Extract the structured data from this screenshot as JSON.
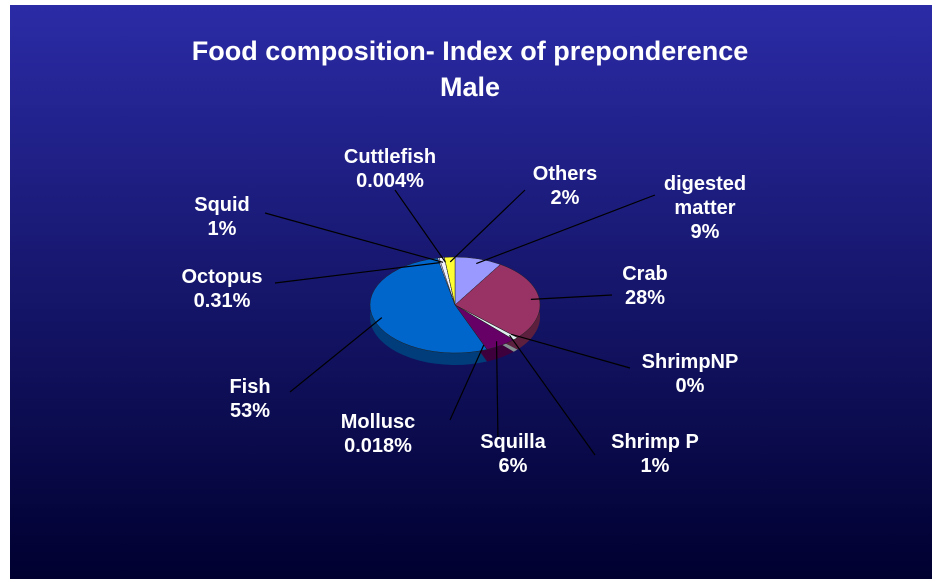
{
  "chart_data": {
    "type": "pie",
    "title": "Food composition- Index of preponderence",
    "subtitle": "Male",
    "categories": [
      "digested matter",
      "Crab",
      "ShrimpNP",
      "Shrimp P",
      "Squilla",
      "Mollusc",
      "Fish",
      "Octopus",
      "Squid",
      "Cuttlefish",
      "Others"
    ],
    "values": [
      9,
      28,
      0,
      1,
      6,
      0.018,
      53,
      0.31,
      1,
      0.004,
      2
    ],
    "value_labels": [
      "9%",
      "28%",
      "0%",
      "1%",
      "6%",
      "0.018%",
      "53%",
      "0.31%",
      "1%",
      "0.004%",
      "2%"
    ],
    "colors": [
      "#9999ff",
      "#993366",
      "#ffffcc",
      "#e0f0f0",
      "#660066",
      "#ff8080",
      "#0066cc",
      "#ccccff",
      "#f0f0ff",
      "#ffcc00",
      "#ffff33"
    ]
  }
}
